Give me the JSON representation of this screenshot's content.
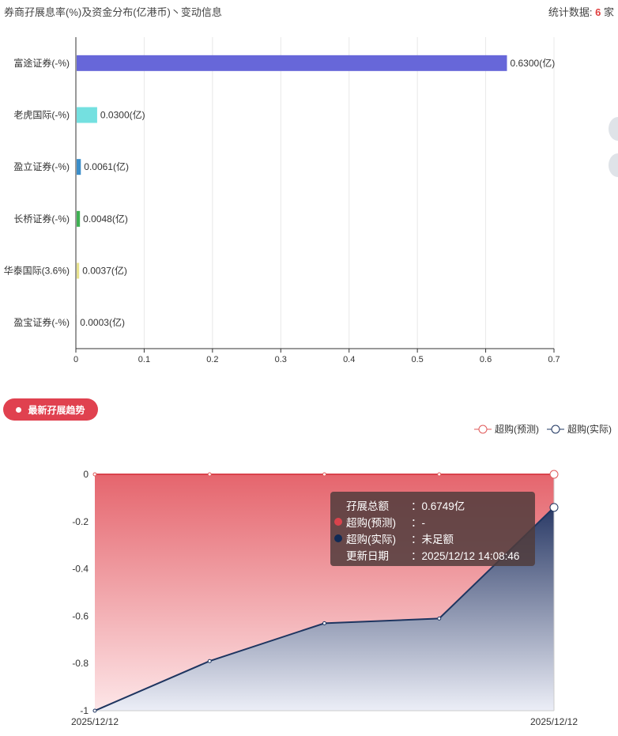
{
  "header": {
    "title": "券商孖展息率(%)及资金分布(亿港币)丶变动信息",
    "stat_label": "统计数据:",
    "stat_count": "6",
    "stat_unit": "家"
  },
  "colors": {
    "accent": "#e0414f",
    "forecast": "#e05a5a",
    "actual": "#1e3560"
  },
  "chart_data": [
    {
      "type": "bar",
      "orientation": "horizontal",
      "categories": [
        "富途证券(-%)",
        "老虎国际(-%)",
        "盈立证券(-%)",
        "长桥证券(-%)",
        "华泰国际(3.6%)",
        "盈宝证券(-%)"
      ],
      "values": [
        0.63,
        0.03,
        0.0061,
        0.0048,
        0.0037,
        0.0003
      ],
      "labels": [
        "0.6300(亿)",
        "0.0300(亿)",
        "0.0061(亿)",
        "0.0048(亿)",
        "0.0037(亿)",
        "0.0003(亿)"
      ],
      "bar_colors": [
        "#6767d9",
        "#74e0e0",
        "#3b8ec9",
        "#3fb153",
        "#e8e28e",
        "#cccccc"
      ],
      "xlim": [
        0,
        0.7
      ],
      "xticks": [
        "0",
        "0.1",
        "0.2",
        "0.3",
        "0.4",
        "0.5",
        "0.6",
        "0.7"
      ]
    },
    {
      "type": "area",
      "x": [
        "2025/12/12",
        "",
        "",
        "",
        "2025/12/12"
      ],
      "xtick_labels": [
        "2025/12/12",
        "2025/12/12"
      ],
      "ylim": [
        -1,
        0
      ],
      "yticks": [
        "0",
        "-0.2",
        "-0.4",
        "-0.6",
        "-0.8",
        "-1"
      ],
      "series": [
        {
          "name": "超购(预测)",
          "values": [
            0,
            0,
            0,
            0,
            0
          ]
        },
        {
          "name": "超购(实际)",
          "values": [
            -1,
            -0.79,
            -0.63,
            -0.61,
            -0.14
          ]
        }
      ]
    }
  ],
  "trend": {
    "button": "最新孖展趋势"
  },
  "tooltip": {
    "rows": [
      {
        "key": "孖展总额",
        "value": "：0.6749亿"
      },
      {
        "key": "超购(预测)",
        "value": "：-"
      },
      {
        "key": "超购(实际)",
        "value": "：未足额"
      },
      {
        "key": "更新日期",
        "value": "：2025/12/12 14:08:46"
      }
    ]
  }
}
